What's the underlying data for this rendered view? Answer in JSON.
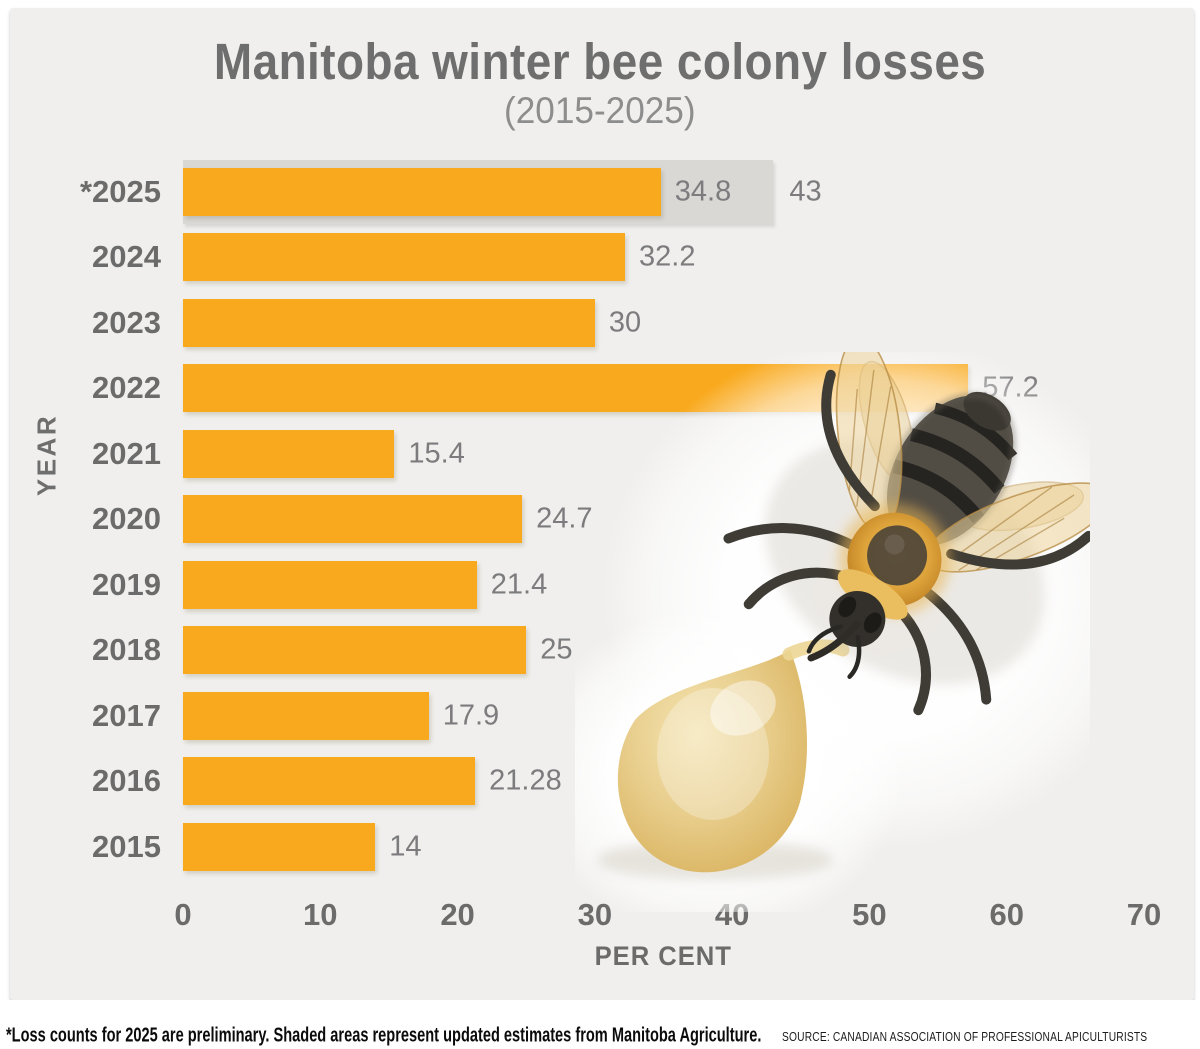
{
  "chart_data": {
    "type": "bar",
    "orientation": "horizontal",
    "title": "Manitoba winter bee colony losses",
    "subtitle": "(2015-2025)",
    "ylabel": "YEAR",
    "xlabel": "PER CENT",
    "xlim": [
      0,
      70
    ],
    "xticks": [
      0,
      10,
      20,
      30,
      40,
      50,
      60,
      70
    ],
    "categories": [
      "*2025",
      "2024",
      "2023",
      "2022",
      "2021",
      "2020",
      "2019",
      "2018",
      "2017",
      "2016",
      "2015"
    ],
    "values": [
      34.8,
      32.2,
      30,
      57.2,
      15.4,
      24.7,
      21.4,
      25,
      17.9,
      21.28,
      14
    ],
    "value_labels": [
      "34.8",
      "32.2",
      "30",
      "57.2",
      "15.4",
      "24.7",
      "21.4",
      "25",
      "17.9",
      "21.28",
      "14"
    ],
    "estimate": {
      "category": "*2025",
      "value": 43,
      "label": "43"
    },
    "grid": false,
    "legend_position": "none",
    "bar_color": "#F9A91D",
    "estimate_bar_color": "#D9D8D5",
    "panel_background": "#F0EFED",
    "axis_text_color": "#6B6B6B",
    "value_text_color": "#7C7C7E"
  },
  "decor": {
    "bee_icon": "bee-photo",
    "honey_icon": "honey-drop"
  },
  "footer": {
    "note": "*Loss counts for 2025 are preliminary. Shaded areas represent updated estimates from Manitoba Agriculture.",
    "source": "SOURCE: CANADIAN ASSOCIATION OF PROFESSIONAL APICULTURISTS"
  }
}
